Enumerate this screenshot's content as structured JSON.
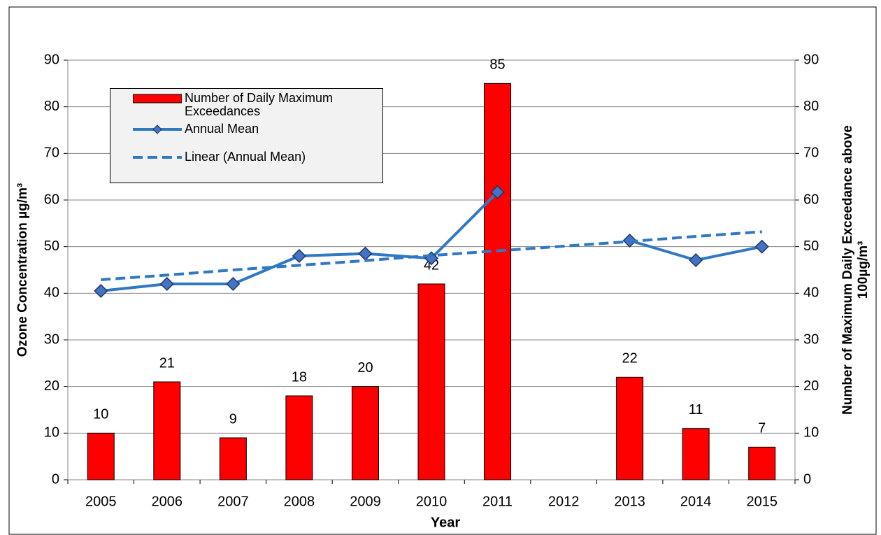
{
  "chart_data": {
    "type": "bar_line",
    "x_label": "Year",
    "y_label": "Ozone Concentration µg/m³",
    "y2_label": [
      "Number of Maximum Daily Exceedance above",
      "100µg/m³"
    ],
    "categories": [
      "2005",
      "2006",
      "2007",
      "2008",
      "2009",
      "2010",
      "2011",
      "2012",
      "2013",
      "2014",
      "2015"
    ],
    "series": [
      {
        "name": "Number of Daily Maximum Exceedances",
        "type": "bar",
        "axis": "y2",
        "color": "#ff0000",
        "values": [
          10,
          21,
          9,
          18,
          20,
          42,
          85,
          null,
          22,
          11,
          7
        ]
      },
      {
        "name": "Annual Mean",
        "type": "line",
        "color": "#2f78c4",
        "marker_color": "#4472c4",
        "values": [
          40.5,
          42,
          42,
          48,
          48.5,
          47.5,
          61.7,
          null,
          51.3,
          47.1,
          50
        ]
      },
      {
        "name": "Linear (Annual Mean)",
        "type": "line",
        "dashed": true,
        "color": "#2f78c4",
        "values": [
          42.9,
          43.9,
          45.0,
          46.0,
          47.0,
          48.1,
          49.1,
          50.1,
          51.1,
          52.2,
          53.2
        ]
      }
    ],
    "ylim": [
      0,
      90
    ],
    "yticks": [
      0,
      10,
      20,
      30,
      40,
      50,
      60,
      70,
      80,
      90
    ],
    "y2lim": [
      0,
      90
    ],
    "y2ticks": [
      0,
      10,
      20,
      30,
      40,
      50,
      60,
      70,
      80,
      90
    ],
    "grid": true,
    "legend": "upper-left"
  }
}
